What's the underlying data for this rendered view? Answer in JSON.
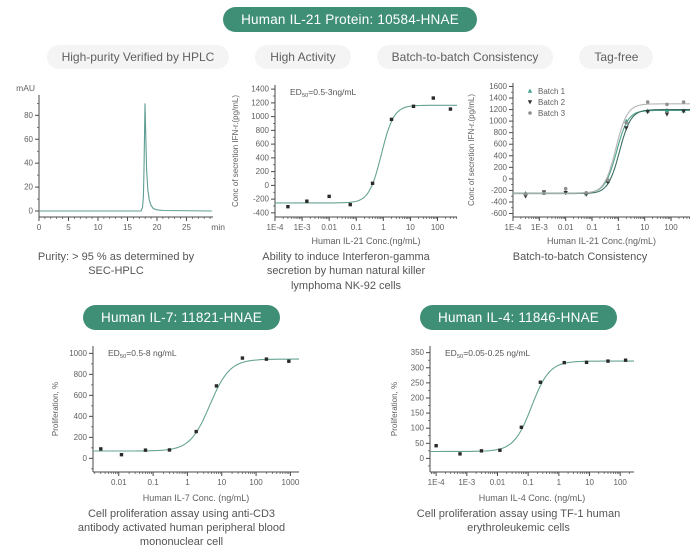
{
  "style": {
    "accent_green": "#3f8f77",
    "badge_bg": "#f4f4f4",
    "badge_text": "#5f5f5f",
    "axis_color": "#4a4a4a",
    "tick_text": "#606060",
    "curve_teal": "#66a394",
    "point_dark": "#2a2a2a"
  },
  "header": {
    "label": "Human IL-21 Protein: 10584-HNAE"
  },
  "badges": [
    "High-purity Verified by HPLC",
    "High Activity",
    "Batch-to-batch Consistency",
    "Tag-free"
  ],
  "products": {
    "il7": {
      "label": "Human IL-7: 11821-HNAE"
    },
    "il4": {
      "label": "Human IL-4: 11846-HNAE"
    }
  },
  "chart_data": [
    {
      "id": "hplc",
      "type": "line",
      "xlabel": "min",
      "ylabel": "mAU",
      "xscale": "linear",
      "xlim": [
        0,
        29.5
      ],
      "ylim": [
        -5,
        97
      ],
      "xticks": [
        {
          "v": 0,
          "label": "0"
        },
        {
          "v": 5,
          "label": "5"
        },
        {
          "v": 10,
          "label": "10"
        },
        {
          "v": 15,
          "label": "15"
        },
        {
          "v": 20,
          "label": "20"
        },
        {
          "v": 25,
          "label": "25"
        }
      ],
      "yticks": [
        0,
        20,
        40,
        60,
        80
      ],
      "xminor": 1,
      "yminor": 10,
      "line": {
        "color": "#5f9e92",
        "points": [
          [
            0,
            0
          ],
          [
            17.3,
            0
          ],
          [
            17.55,
            3
          ],
          [
            17.7,
            12
          ],
          [
            17.8,
            35
          ],
          [
            17.9,
            68
          ],
          [
            17.97,
            90
          ],
          [
            18.1,
            62
          ],
          [
            18.25,
            35
          ],
          [
            18.45,
            18
          ],
          [
            18.7,
            9
          ],
          [
            19.0,
            4.5
          ],
          [
            19.4,
            2
          ],
          [
            20.0,
            1
          ],
          [
            21,
            0.4
          ],
          [
            29.3,
            0
          ]
        ]
      },
      "caption": "Purity: > 95 % as determined by SEC-HPLC"
    },
    {
      "id": "il21",
      "type": "scatter",
      "ed50": {
        "prefix": "ED",
        "sub": "50",
        "text": "=0.5-3ng/mL"
      },
      "xlabel": "Human IL-21 Conc.(ng/mL)",
      "ylabel": "Conc of secretion IFN-r.(pg/mL)",
      "xscale": "log",
      "xlim": [
        -4,
        2.72
      ],
      "ylim": [
        -460,
        1460
      ],
      "xticks": [
        {
          "v": 0.0001,
          "label": "1E-4"
        },
        {
          "v": 0.001,
          "label": "1E-3"
        },
        {
          "v": 0.01,
          "label": "0.01"
        },
        {
          "v": 0.1,
          "label": "0.1"
        },
        {
          "v": 1,
          "label": "1"
        },
        {
          "v": 10,
          "label": "10"
        },
        {
          "v": 100,
          "label": "100"
        }
      ],
      "yticks": [
        -400,
        -200,
        0,
        200,
        400,
        600,
        800,
        1000,
        1200,
        1400
      ],
      "yminor": 100,
      "series": [
        {
          "name": "IL-21",
          "marker": "square",
          "color": "#2a2a2a",
          "points": [
            [
              0.0003,
              -310
            ],
            [
              0.0015,
              -230
            ],
            [
              0.01,
              -160
            ],
            [
              0.06,
              -280
            ],
            [
              0.4,
              30
            ],
            [
              2,
              960
            ],
            [
              13,
              1150
            ],
            [
              70,
              1270
            ],
            [
              300,
              1110
            ]
          ],
          "curve": {
            "bottom": -255,
            "top": 1165,
            "ec50": 0.85,
            "hill": 1.9,
            "color": "#66a394"
          }
        }
      ],
      "caption": "Ability to induce Interferon-gamma secretion by human natural killer lymphoma NK-92 cells"
    },
    {
      "id": "batch",
      "type": "scatter",
      "xlabel": "Human IL-21 Conc.(ng/mL)",
      "ylabel": "Conc of secretion IFN-r.(pg/mL)",
      "xscale": "log",
      "xlim": [
        -4,
        2.72
      ],
      "ylim": [
        -660,
        1660
      ],
      "xticks": [
        {
          "v": 0.0001,
          "label": "1E-4"
        },
        {
          "v": 0.001,
          "label": "1E-3"
        },
        {
          "v": 0.01,
          "label": "0.01"
        },
        {
          "v": 0.1,
          "label": "0.1"
        },
        {
          "v": 1,
          "label": "1"
        },
        {
          "v": 10,
          "label": "10"
        },
        {
          "v": 100,
          "label": "100"
        }
      ],
      "yticks": [
        -600,
        -400,
        -200,
        0,
        200,
        400,
        600,
        800,
        1000,
        1200,
        1400,
        1600
      ],
      "yminor": 100,
      "legend": [
        {
          "label": "Batch 1",
          "marker": "triangle-up",
          "color": "#3fa089"
        },
        {
          "label": "Batch 2",
          "marker": "triangle-down",
          "color": "#333333"
        },
        {
          "label": "Batch 3",
          "marker": "circle",
          "color": "#8f8f8f"
        }
      ],
      "series": [
        {
          "name": "Batch 1",
          "marker": "triangle-up",
          "color": "#3fa089",
          "points": [
            [
              0.0003,
              -250
            ],
            [
              0.0015,
              -240
            ],
            [
              0.01,
              -230
            ],
            [
              0.06,
              -250
            ],
            [
              0.4,
              -40
            ],
            [
              2,
              1000
            ],
            [
              13,
              1180
            ],
            [
              70,
              1190
            ],
            [
              300,
              1180
            ]
          ],
          "curve": {
            "bottom": -245,
            "top": 1185,
            "ec50": 0.85,
            "hill": 2.0,
            "color": "#4da18b"
          }
        },
        {
          "name": "Batch 2",
          "marker": "triangle-down",
          "color": "#333333",
          "points": [
            [
              0.0003,
              -300
            ],
            [
              0.0015,
              -230
            ],
            [
              0.01,
              -240
            ],
            [
              0.06,
              -270
            ],
            [
              0.4,
              -60
            ],
            [
              2,
              880
            ],
            [
              13,
              1160
            ],
            [
              70,
              1120
            ],
            [
              300,
              1170
            ]
          ],
          "curve": {
            "bottom": -255,
            "top": 1200,
            "ec50": 1.1,
            "hill": 2.0,
            "color": "#3c6e62"
          }
        },
        {
          "name": "Batch 3",
          "marker": "circle",
          "color": "#8f8f8f",
          "points": [
            [
              0.0003,
              -260
            ],
            [
              0.0015,
              -250
            ],
            [
              0.01,
              -170
            ],
            [
              0.06,
              -240
            ],
            [
              0.4,
              -20
            ],
            [
              2,
              970
            ],
            [
              13,
              1330
            ],
            [
              70,
              1290
            ],
            [
              300,
              1330
            ]
          ],
          "curve": {
            "bottom": -250,
            "top": 1300,
            "ec50": 0.8,
            "hill": 2.0,
            "color": "#b5b5b5"
          }
        }
      ],
      "caption": "Batch-to-batch Consistency"
    },
    {
      "id": "il7",
      "type": "scatter",
      "ed50": {
        "prefix": "ED",
        "sub": "50",
        "text": "=0.5-8 ng/mL"
      },
      "xlabel": "Human IL-7 Conc. (ng/mL)",
      "ylabel": "Proliferation, %",
      "xscale": "log",
      "xlim": [
        -2.75,
        3.25
      ],
      "ylim": [
        -130,
        1070
      ],
      "xticks": [
        {
          "v": 0.01,
          "label": "0.01"
        },
        {
          "v": 0.1,
          "label": "0.1"
        },
        {
          "v": 1,
          "label": "1"
        },
        {
          "v": 10,
          "label": "10"
        },
        {
          "v": 100,
          "label": "100"
        },
        {
          "v": 1000,
          "label": "1000"
        }
      ],
      "yticks": [
        0,
        200,
        400,
        600,
        800,
        1000
      ],
      "yminor": 100,
      "series": [
        {
          "name": "IL-7",
          "marker": "square",
          "color": "#2a2a2a",
          "points": [
            [
              0.003,
              90
            ],
            [
              0.012,
              35
            ],
            [
              0.06,
              78
            ],
            [
              0.3,
              80
            ],
            [
              1.8,
              255
            ],
            [
              7,
              690
            ],
            [
              40,
              955
            ],
            [
              200,
              945
            ],
            [
              900,
              925
            ]
          ],
          "curve": {
            "bottom": 70,
            "top": 945,
            "ec50": 4.5,
            "hill": 1.5,
            "color": "#66a394"
          }
        }
      ],
      "caption": "Cell proliferation assay using anti-CD3 antibody activated human peripheral blood mononuclear cell"
    },
    {
      "id": "il4",
      "type": "scatter",
      "ed50": {
        "prefix": "ED",
        "sub": "50",
        "text": "=0.05-0.25 ng/mL"
      },
      "xlabel": "Human IL-4 Conc. (ng/mL)",
      "ylabel": "Proliferation, %",
      "xscale": "log",
      "xlim": [
        -4.2,
        2.45
      ],
      "ylim": [
        -45,
        372
      ],
      "xticks": [
        {
          "v": 0.0001,
          "label": "1E-4"
        },
        {
          "v": 0.001,
          "label": "1E-3"
        },
        {
          "v": 0.01,
          "label": "0.01"
        },
        {
          "v": 0.1,
          "label": "0.1"
        },
        {
          "v": 1,
          "label": "1"
        },
        {
          "v": 10,
          "label": "10"
        },
        {
          "v": 100,
          "label": "100"
        }
      ],
      "yticks": [
        0,
        50,
        100,
        150,
        200,
        250,
        300,
        350
      ],
      "yminor": 25,
      "series": [
        {
          "name": "IL-4",
          "marker": "square",
          "color": "#2a2a2a",
          "points": [
            [
              0.0001,
              42
            ],
            [
              0.0006,
              15
            ],
            [
              0.003,
              25
            ],
            [
              0.012,
              27
            ],
            [
              0.06,
              103
            ],
            [
              0.25,
              252
            ],
            [
              1.5,
              317
            ],
            [
              8,
              318
            ],
            [
              40,
              322
            ],
            [
              150,
              325
            ]
          ],
          "curve": {
            "bottom": 23,
            "top": 322,
            "ec50": 0.13,
            "hill": 1.5,
            "color": "#66a394"
          }
        }
      ],
      "caption": "Cell proliferation assay using TF-1 human erythroleukemic cells"
    }
  ]
}
